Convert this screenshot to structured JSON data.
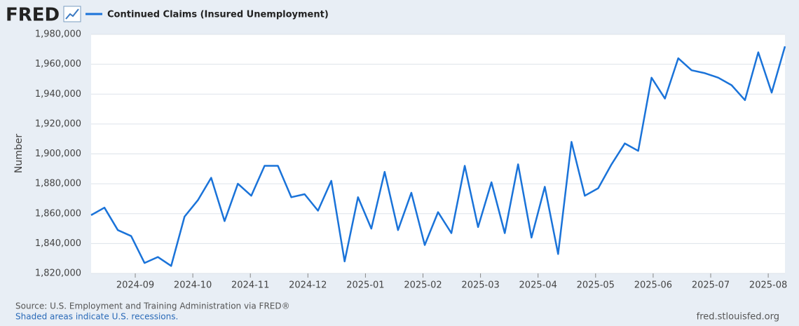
{
  "logo": "FRED",
  "chart_data": {
    "type": "line",
    "y_label": "Number",
    "series": [
      {
        "name": "Continued Claims (Insured Unemployment)",
        "color": "#1a73d9",
        "values": [
          1859000,
          1864000,
          1849000,
          1845000,
          1827000,
          1831000,
          1825000,
          1858000,
          1869000,
          1884000,
          1855000,
          1880000,
          1872000,
          1892000,
          1892000,
          1871000,
          1873000,
          1862000,
          1882000,
          1828000,
          1871000,
          1850000,
          1888000,
          1849000,
          1874000,
          1839000,
          1861000,
          1847000,
          1892000,
          1851000,
          1881000,
          1847000,
          1893000,
          1844000,
          1878000,
          1833000,
          1908000,
          1872000,
          1877000,
          1893000,
          1907000,
          1902000,
          1951000,
          1937000,
          1964000,
          1956000,
          1954000,
          1951000,
          1946000,
          1936000,
          1968000,
          1941000,
          1972000
        ]
      }
    ],
    "ylim": [
      1820000,
      1980000
    ],
    "yticks": [
      {
        "value": 1820000,
        "label": "1,820,000"
      },
      {
        "value": 1840000,
        "label": "1,840,000"
      },
      {
        "value": 1860000,
        "label": "1,860,000"
      },
      {
        "value": 1880000,
        "label": "1,880,000"
      },
      {
        "value": 1900000,
        "label": "1,900,000"
      },
      {
        "value": 1920000,
        "label": "1,920,000"
      },
      {
        "value": 1940000,
        "label": "1,940,000"
      },
      {
        "value": 1960000,
        "label": "1,960,000"
      },
      {
        "value": 1980000,
        "label": "1,980,000"
      }
    ],
    "xticks": [
      "2024-09",
      "2024-10",
      "2024-11",
      "2024-12",
      "2025-01",
      "2025-02",
      "2025-03",
      "2025-04",
      "2025-05",
      "2025-06",
      "2025-07",
      "2025-08"
    ],
    "grid": true
  },
  "footer": {
    "source": "Source: U.S. Employment and Training Administration via FRED®",
    "note": "Shaded areas indicate U.S. recessions.",
    "site": "fred.stlouisfed.org"
  }
}
